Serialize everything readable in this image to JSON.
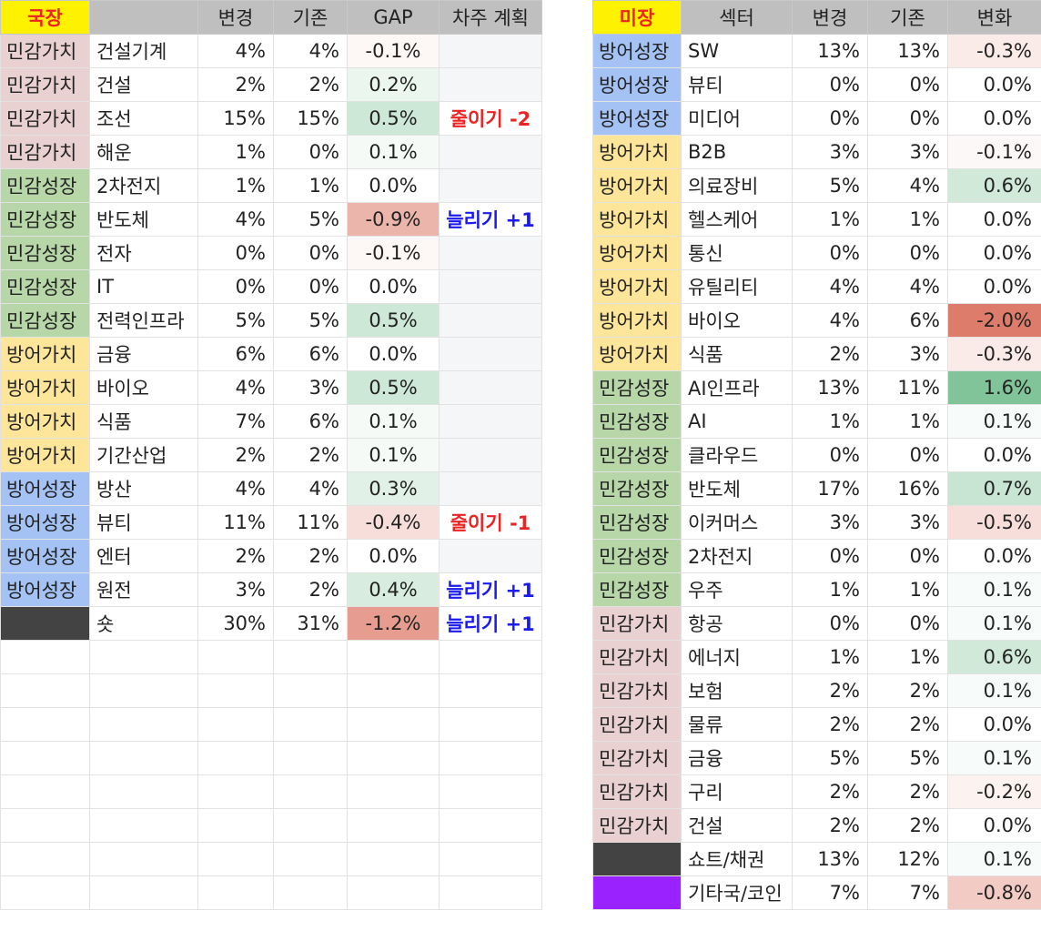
{
  "kr": {
    "headers": [
      "국장",
      "",
      "변경",
      "기존",
      "GAP",
      "차주 계획"
    ],
    "rows": [
      {
        "cat": "민감가치",
        "name": "건설기계",
        "new": "4%",
        "old": "4%",
        "gap": "-0.1%",
        "plan": ""
      },
      {
        "cat": "민감가치",
        "name": "건설",
        "new": "2%",
        "old": "2%",
        "gap": "0.2%",
        "plan": ""
      },
      {
        "cat": "민감가치",
        "name": "조선",
        "new": "15%",
        "old": "15%",
        "gap": "0.5%",
        "plan": "줄이기 -2"
      },
      {
        "cat": "민감가치",
        "name": "해운",
        "new": "1%",
        "old": "0%",
        "gap": "0.1%",
        "plan": ""
      },
      {
        "cat": "민감성장",
        "name": "2차전지",
        "new": "1%",
        "old": "1%",
        "gap": "0.0%",
        "plan": ""
      },
      {
        "cat": "민감성장",
        "name": "반도체",
        "new": "4%",
        "old": "5%",
        "gap": "-0.9%",
        "plan": "늘리기 +1"
      },
      {
        "cat": "민감성장",
        "name": "전자",
        "new": "0%",
        "old": "0%",
        "gap": "-0.1%",
        "plan": ""
      },
      {
        "cat": "민감성장",
        "name": "IT",
        "new": "0%",
        "old": "0%",
        "gap": "0.0%",
        "plan": ""
      },
      {
        "cat": "민감성장",
        "name": "전력인프라",
        "new": "5%",
        "old": "5%",
        "gap": "0.5%",
        "plan": ""
      },
      {
        "cat": "방어가치",
        "name": "금융",
        "new": "6%",
        "old": "6%",
        "gap": "0.0%",
        "plan": ""
      },
      {
        "cat": "방어가치",
        "name": "바이오",
        "new": "4%",
        "old": "3%",
        "gap": "0.5%",
        "plan": ""
      },
      {
        "cat": "방어가치",
        "name": "식품",
        "new": "7%",
        "old": "6%",
        "gap": "0.1%",
        "plan": ""
      },
      {
        "cat": "방어가치",
        "name": "기간산업",
        "new": "2%",
        "old": "2%",
        "gap": "0.1%",
        "plan": ""
      },
      {
        "cat": "방어성장",
        "name": "방산",
        "new": "4%",
        "old": "4%",
        "gap": "0.3%",
        "plan": ""
      },
      {
        "cat": "방어성장",
        "name": "뷰티",
        "new": "11%",
        "old": "11%",
        "gap": "-0.4%",
        "plan": "줄이기 -1"
      },
      {
        "cat": "방어성장",
        "name": "엔터",
        "new": "2%",
        "old": "2%",
        "gap": "0.0%",
        "plan": ""
      },
      {
        "cat": "방어성장",
        "name": "원전",
        "new": "3%",
        "old": "2%",
        "gap": "0.4%",
        "plan": "늘리기 +1"
      },
      {
        "cat": "",
        "name": "숏",
        "new": "30%",
        "old": "31%",
        "gap": "-1.2%",
        "plan": "늘리기 +1"
      }
    ]
  },
  "us": {
    "headers": [
      "미장",
      "섹터",
      "변경",
      "기존",
      "변화"
    ],
    "rows": [
      {
        "cat": "방어성장",
        "name": "SW",
        "new": "13%",
        "old": "13%",
        "chg": "-0.3%"
      },
      {
        "cat": "방어성장",
        "name": "뷰티",
        "new": "0%",
        "old": "0%",
        "chg": "0.0%"
      },
      {
        "cat": "방어성장",
        "name": "미디어",
        "new": "0%",
        "old": "0%",
        "chg": "0.0%"
      },
      {
        "cat": "방어가치",
        "name": "B2B",
        "new": "3%",
        "old": "3%",
        "chg": "-0.1%"
      },
      {
        "cat": "방어가치",
        "name": "의료장비",
        "new": "5%",
        "old": "4%",
        "chg": "0.6%"
      },
      {
        "cat": "방어가치",
        "name": "헬스케어",
        "new": "1%",
        "old": "1%",
        "chg": "0.0%"
      },
      {
        "cat": "방어가치",
        "name": "통신",
        "new": "0%",
        "old": "0%",
        "chg": "0.0%"
      },
      {
        "cat": "방어가치",
        "name": "유틸리티",
        "new": "4%",
        "old": "4%",
        "chg": "0.0%"
      },
      {
        "cat": "방어가치",
        "name": "바이오",
        "new": "4%",
        "old": "6%",
        "chg": "-2.0%"
      },
      {
        "cat": "방어가치",
        "name": "식품",
        "new": "2%",
        "old": "3%",
        "chg": "-0.3%"
      },
      {
        "cat": "민감성장",
        "name": "AI인프라",
        "new": "13%",
        "old": "11%",
        "chg": "1.6%"
      },
      {
        "cat": "민감성장",
        "name": "AI",
        "new": "1%",
        "old": "1%",
        "chg": "0.1%"
      },
      {
        "cat": "민감성장",
        "name": "클라우드",
        "new": "0%",
        "old": "0%",
        "chg": "0.0%"
      },
      {
        "cat": "민감성장",
        "name": "반도체",
        "new": "17%",
        "old": "16%",
        "chg": "0.7%"
      },
      {
        "cat": "민감성장",
        "name": "이커머스",
        "new": "3%",
        "old": "3%",
        "chg": "-0.5%"
      },
      {
        "cat": "민감성장",
        "name": "2차전지",
        "new": "0%",
        "old": "0%",
        "chg": "0.0%"
      },
      {
        "cat": "민감성장",
        "name": "우주",
        "new": "1%",
        "old": "1%",
        "chg": "0.1%"
      },
      {
        "cat": "민감가치",
        "name": "항공",
        "new": "0%",
        "old": "0%",
        "chg": "0.1%"
      },
      {
        "cat": "민감가치",
        "name": "에너지",
        "new": "1%",
        "old": "1%",
        "chg": "0.6%"
      },
      {
        "cat": "민감가치",
        "name": "보험",
        "new": "2%",
        "old": "2%",
        "chg": "0.1%"
      },
      {
        "cat": "민감가치",
        "name": "물류",
        "new": "2%",
        "old": "2%",
        "chg": "0.0%"
      },
      {
        "cat": "민감가치",
        "name": "금융",
        "new": "5%",
        "old": "5%",
        "chg": "0.1%"
      },
      {
        "cat": "민감가치",
        "name": "구리",
        "new": "2%",
        "old": "2%",
        "chg": "-0.2%"
      },
      {
        "cat": "민감가치",
        "name": "건설",
        "new": "2%",
        "old": "2%",
        "chg": "0.0%"
      },
      {
        "cat": "",
        "name": "쇼트/채권",
        "new": "13%",
        "old": "12%",
        "chg": "0.1%"
      },
      {
        "cat": "",
        "name": "기타국/코인",
        "new": "7%",
        "old": "7%",
        "chg": "-0.8%"
      }
    ]
  },
  "colors": {
    "민감가치": "#ead1d1",
    "민감성장": "#b7d7a8",
    "방어가치": "#fde599",
    "방어성장": "#a4c2f4",
    "short": "#434343",
    "coin": "#9a22ff",
    "title_bg": "#fff200",
    "title_fg": "#ee2222",
    "header_bg": "#bfbfbf",
    "plan_up": "#1a1aee",
    "plan_down": "#ee2222",
    "blank_plan": "#f5f6f8"
  }
}
